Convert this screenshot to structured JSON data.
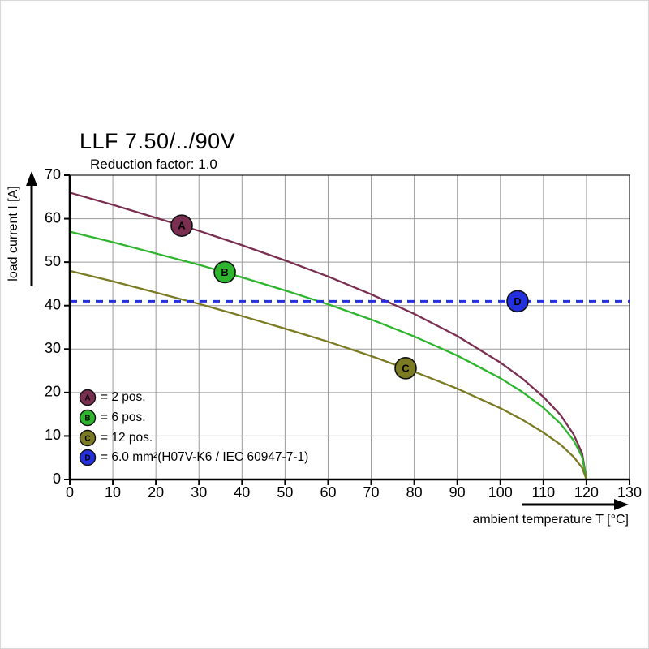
{
  "page": {
    "title": "LLF 7.50/../90V",
    "subtitle": "Reduction factor: 1.0"
  },
  "chart_data": {
    "type": "line",
    "title": "LLF 7.50/../90V",
    "subtitle": "Reduction factor: 1.0",
    "xlabel": "ambient temperature T [°C]",
    "ylabel": "load current I [A]",
    "xlim": [
      0,
      130
    ],
    "ylim": [
      0,
      70
    ],
    "xticks": [
      0,
      10,
      20,
      30,
      40,
      50,
      60,
      70,
      80,
      90,
      100,
      110,
      120,
      130
    ],
    "yticks": [
      0,
      10,
      20,
      30,
      40,
      50,
      60,
      70
    ],
    "grid": true,
    "grid_color": "#9a9a9a",
    "x": [
      0,
      10,
      20,
      30,
      40,
      50,
      60,
      70,
      80,
      90,
      100,
      105,
      110,
      114,
      117,
      119,
      120
    ],
    "series": [
      {
        "name": "A",
        "label": "2 pos.",
        "color": "#7a2f50",
        "values": [
          66,
          63.2,
          60.2,
          57.2,
          53.9,
          50.4,
          46.7,
          42.6,
          38.1,
          33,
          26.9,
          23.3,
          19,
          14.8,
          10.4,
          6,
          0
        ]
      },
      {
        "name": "B",
        "label": "6 pos.",
        "color": "#2eb52e",
        "values": [
          57,
          54.6,
          52,
          49.4,
          46.5,
          43.5,
          40.3,
          36.8,
          32.9,
          28.5,
          23.3,
          20.2,
          16.5,
          12.8,
          9,
          5.2,
          0
        ]
      },
      {
        "name": "C",
        "label": "12 pos.",
        "color": "#7b7b24",
        "values": [
          48,
          45.6,
          43,
          40.4,
          37.6,
          34.7,
          31.7,
          28.4,
          24.8,
          20.9,
          16.4,
          13.8,
          10.8,
          8,
          5.2,
          2.7,
          0
        ]
      },
      {
        "name": "D",
        "label": "6.0 mm²(H07V-K6 / IEC 60947-7-1)",
        "color": "#2430de",
        "type": "hline",
        "value": 41,
        "style": "dashed"
      }
    ],
    "markers": [
      {
        "series": "A",
        "x": 26,
        "y": 58.4
      },
      {
        "series": "B",
        "x": 36,
        "y": 47.7
      },
      {
        "series": "C",
        "x": 78,
        "y": 25.6
      },
      {
        "series": "D",
        "x": 104,
        "y": 41
      }
    ],
    "legend": [
      {
        "key": "A",
        "text": "= 2 pos."
      },
      {
        "key": "B",
        "text": "= 6 pos."
      },
      {
        "key": "C",
        "text": "= 12 pos."
      },
      {
        "key": "D",
        "text": "= 6.0 mm²(H07V-K6 / IEC 60947-7-1)"
      }
    ],
    "legend_position": "lower-left"
  }
}
